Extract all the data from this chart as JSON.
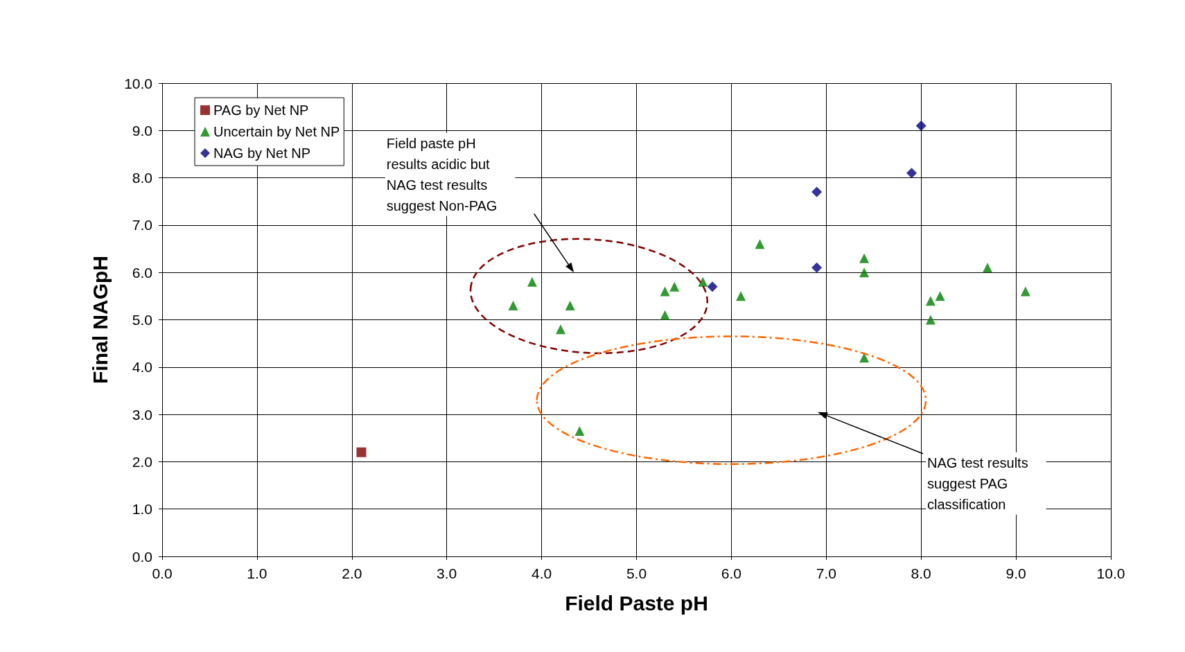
{
  "chart_data": {
    "type": "scatter",
    "xlabel": "Field Paste pH",
    "ylabel": "Final NAGpH",
    "xlim": [
      0,
      10
    ],
    "ylim": [
      0,
      10
    ],
    "xticks": [
      {
        "value": 0,
        "label": "0.0"
      },
      {
        "value": 1,
        "label": "1.0"
      },
      {
        "value": 2,
        "label": "2.0"
      },
      {
        "value": 3,
        "label": "3.0"
      },
      {
        "value": 4,
        "label": "4.0"
      },
      {
        "value": 5,
        "label": "5.0"
      },
      {
        "value": 6,
        "label": "6.0"
      },
      {
        "value": 7,
        "label": "7.0"
      },
      {
        "value": 8,
        "label": "8.0"
      },
      {
        "value": 9,
        "label": "9.0"
      },
      {
        "value": 10,
        "label": "10.0"
      }
    ],
    "yticks": [
      {
        "value": 0,
        "label": "0.0"
      },
      {
        "value": 1,
        "label": "1.0"
      },
      {
        "value": 2,
        "label": "2.0"
      },
      {
        "value": 3,
        "label": "3.0"
      },
      {
        "value": 4,
        "label": "4.0"
      },
      {
        "value": 5,
        "label": "5.0"
      },
      {
        "value": 6,
        "label": "6.0"
      },
      {
        "value": 7,
        "label": "7.0"
      },
      {
        "value": 8,
        "label": "8.0"
      },
      {
        "value": 9,
        "label": "9.0"
      },
      {
        "value": 10,
        "label": "10.0"
      }
    ],
    "grid": true,
    "legend": "top left",
    "series": [
      {
        "name": "PAG by Net NP",
        "color": "#800000",
        "marker": "square",
        "x": [
          2.1
        ],
        "values": [
          2.2
        ]
      },
      {
        "name": "Uncertain by Net NP",
        "color": "#008000",
        "marker": "triangle",
        "x": [
          3.7,
          3.9,
          4.2,
          4.3,
          4.4,
          5.3,
          5.3,
          5.4,
          5.7,
          6.1,
          6.3,
          7.4,
          7.4,
          7.4,
          8.1,
          8.1,
          8.2,
          8.7,
          9.1
        ],
        "values": [
          5.3,
          5.8,
          4.8,
          5.3,
          2.65,
          5.6,
          5.1,
          5.7,
          5.8,
          5.5,
          6.6,
          6.3,
          6.0,
          4.2,
          5.4,
          5.0,
          5.5,
          6.1,
          5.6
        ]
      },
      {
        "name": "NAG by Net NP",
        "color": "#000080",
        "marker": "diamond",
        "x": [
          5.8,
          6.9,
          6.9,
          7.9,
          8.0
        ],
        "values": [
          5.7,
          7.7,
          6.1,
          8.1,
          9.1
        ]
      }
    ],
    "annotations": [
      "Field paste pH\nresults acidic but\nNAG test results\nsuggest Non-PAG",
      "NAG test results\nsuggest PAG\nclassification"
    ]
  }
}
